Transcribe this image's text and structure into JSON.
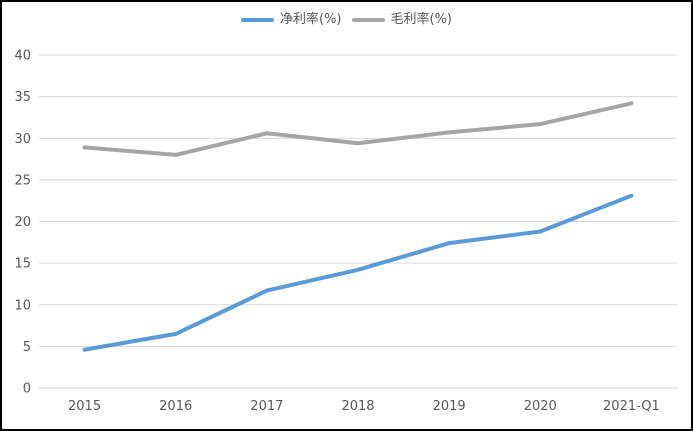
{
  "chart_data": {
    "type": "line",
    "title": "",
    "categories": [
      "2015",
      "2016",
      "2017",
      "2018",
      "2019",
      "2020",
      "2021-Q1"
    ],
    "series": [
      {
        "name": "净利率(%)",
        "color": "#5B9BD5",
        "values": [
          4.6,
          6.5,
          11.7,
          14.2,
          17.4,
          18.8,
          23.1
        ]
      },
      {
        "name": "毛利率(%)",
        "color": "#A5A5A5",
        "values": [
          28.9,
          28.0,
          30.6,
          29.4,
          30.7,
          31.7,
          34.2
        ]
      }
    ],
    "xlabel": "",
    "ylabel": "",
    "ylim": [
      0,
      40
    ],
    "yticks": [
      0,
      5,
      10,
      15,
      20,
      25,
      30,
      35,
      40
    ],
    "grid": true,
    "legend_position": "top"
  },
  "colors": {
    "background": "#FFFFFF",
    "border": "#000000",
    "gridline": "#D9D9D9",
    "axis_line": "#D0D0D0",
    "tick_label": "#595959",
    "series_net_margin": "#5B9BD5",
    "series_gross_margin": "#A5A5A5"
  }
}
